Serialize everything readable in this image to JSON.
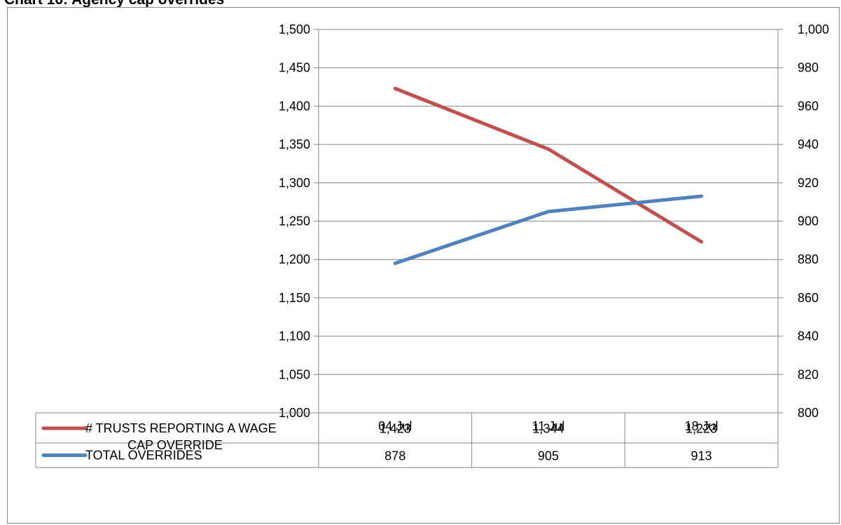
{
  "chart_data": {
    "type": "line",
    "title": "Chart 16: Agency cap overrides",
    "categories": [
      "04 Jul",
      "11 Jul",
      "18 Jul"
    ],
    "y_left": {
      "min": 1000,
      "max": 1500,
      "step": 50
    },
    "y_right": {
      "min": 800,
      "max": 1000,
      "step": 20
    },
    "grid": true,
    "legend_placement": "data-table-below",
    "series": [
      {
        "name": "# TRUSTS REPORTING A WAGE CAP OVERRIDE",
        "name_lines": [
          "# TRUSTS REPORTING A WAGE",
          "CAP OVERRIDE"
        ],
        "axis": "left",
        "color": "#c0504d",
        "values": [
          1423,
          1344,
          1223
        ],
        "labels": [
          "1,423",
          "1,344",
          "1,223"
        ]
      },
      {
        "name": "TOTAL OVERRIDES",
        "name_lines": [
          "TOTAL OVERRIDES"
        ],
        "axis": "right",
        "color": "#4f81bd",
        "values": [
          878,
          905,
          913
        ],
        "labels": [
          "878",
          "905",
          "913"
        ]
      }
    ]
  }
}
